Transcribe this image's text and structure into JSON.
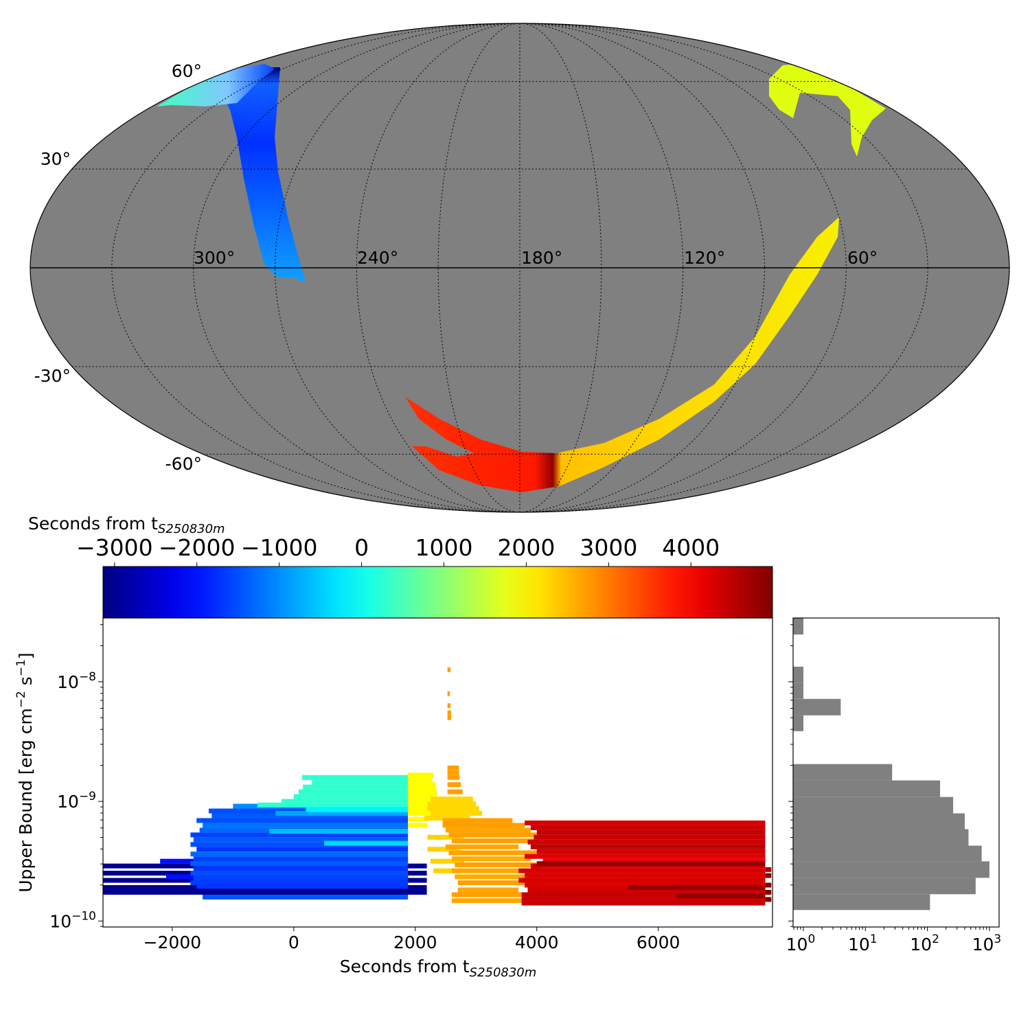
{
  "chart_data": [
    {
      "type": "map",
      "projection": "mollweide",
      "background_color": "#808080",
      "lon_labels": [
        "300°",
        "240°",
        "180°",
        "120°",
        "60°"
      ],
      "lat_labels": [
        "60°",
        "30°",
        "-30°",
        "-60°"
      ],
      "grid": true,
      "color_by": "Seconds from t_S250830m"
    },
    {
      "type": "colorbar",
      "title": "Seconds from t",
      "title_sub": "S250830m",
      "colormap": "jet",
      "range": [
        -3140,
        4990
      ],
      "ticks": [
        -3000,
        -2000,
        -1000,
        0,
        1000,
        2000,
        3000,
        4000
      ],
      "tick_labels": [
        "−3000",
        "−2000",
        "−1000",
        "0",
        "1000",
        "2000",
        "3000",
        "4000"
      ]
    },
    {
      "type": "segments",
      "xlabel": "Seconds from t",
      "xlabel_sub": "S250830m",
      "ylabel": "Upper Bound [erg cm",
      "ylabel_sup1": "−2",
      "ylabel_mid": " s",
      "ylabel_sup2": "−1",
      "ylabel_end": "]",
      "xlim": [
        -3140,
        7880
      ],
      "ylim_log10": [
        -10.05,
        -7.467
      ],
      "xticks": [
        -2000,
        0,
        2000,
        4000,
        6000
      ],
      "xtick_labels": [
        "−2000",
        "0",
        "2000",
        "4000",
        "6000"
      ],
      "yticks_log10": [
        -8,
        -9,
        -10
      ],
      "ytick_labels": [
        {
          "base": "10",
          "exp": "−8"
        },
        {
          "base": "10",
          "exp": "−9"
        },
        {
          "base": "10",
          "exp": "−10"
        }
      ],
      "segment_fields": [
        "start_s",
        "end_s",
        "log10_upper_bound",
        "color_time_s"
      ],
      "segments": [
        [
          -3140,
          2190,
          -9.54,
          -3000
        ],
        [
          -3140,
          2190,
          -9.6,
          -3000
        ],
        [
          -3140,
          2190,
          -9.66,
          -3000
        ],
        [
          -3140,
          2190,
          -9.72,
          -3000
        ],
        [
          -3140,
          2190,
          -9.76,
          -3000
        ],
        [
          -2200,
          1880,
          -9.5,
          -2000
        ],
        [
          -2100,
          1880,
          -9.63,
          -2000
        ],
        [
          -1400,
          1880,
          -9.08,
          -1500
        ],
        [
          -1350,
          1880,
          -9.12,
          -1400
        ],
        [
          -1600,
          1880,
          -9.16,
          -1500
        ],
        [
          -1500,
          1880,
          -9.2,
          -1200
        ],
        [
          -1550,
          1880,
          -9.24,
          -1300
        ],
        [
          -1700,
          1880,
          -9.28,
          -1600
        ],
        [
          -1650,
          1880,
          -9.32,
          -1400
        ],
        [
          -1700,
          1880,
          -9.36,
          -1500
        ],
        [
          -1600,
          1880,
          -9.4,
          -1700
        ],
        [
          -1700,
          1880,
          -9.44,
          -1300
        ],
        [
          -1650,
          1880,
          -9.48,
          -1600
        ],
        [
          -1700,
          1880,
          -9.52,
          -1400
        ],
        [
          -1650,
          1880,
          -9.56,
          -1700
        ],
        [
          -1700,
          1880,
          -9.6,
          -1500
        ],
        [
          -1650,
          1880,
          -9.64,
          -1600
        ],
        [
          -1700,
          1880,
          -9.68,
          -1650
        ],
        [
          -1600,
          1880,
          -9.71,
          -1700
        ],
        [
          -1500,
          1880,
          -9.8,
          -1450
        ],
        [
          -1000,
          1880,
          -9.04,
          -1000
        ],
        [
          -300,
          1880,
          -9.1,
          -800
        ],
        [
          200,
          1880,
          -9.07,
          -200
        ],
        [
          -400,
          1880,
          -9.25,
          -600
        ],
        [
          500,
          1880,
          -9.35,
          -400
        ],
        [
          135,
          1880,
          -8.8,
          300
        ],
        [
          300,
          1880,
          -8.84,
          300
        ],
        [
          150,
          1880,
          -8.88,
          300
        ],
        [
          80,
          1880,
          -8.92,
          300
        ],
        [
          0,
          1880,
          -8.96,
          300
        ],
        [
          -200,
          1880,
          -9.0,
          300
        ],
        [
          -600,
          1880,
          -9.03,
          250
        ],
        [
          1880,
          2300,
          -8.78,
          1950
        ],
        [
          1880,
          2280,
          -8.82,
          1950
        ],
        [
          1880,
          2330,
          -8.86,
          1950
        ],
        [
          1880,
          2350,
          -8.9,
          1950
        ],
        [
          1880,
          2360,
          -8.94,
          1950
        ],
        [
          1880,
          2300,
          -8.98,
          1950
        ],
        [
          1880,
          2250,
          -9.02,
          1950
        ],
        [
          1880,
          2240,
          -9.06,
          1950
        ],
        [
          1880,
          2300,
          -9.1,
          1950
        ],
        [
          1880,
          2220,
          -9.15,
          1950
        ],
        [
          1880,
          2200,
          -9.2,
          1950
        ],
        [
          2250,
          2950,
          -8.98,
          2250
        ],
        [
          2200,
          3000,
          -9.02,
          2250
        ],
        [
          2200,
          3050,
          -9.06,
          2250
        ],
        [
          2250,
          3100,
          -9.1,
          2250
        ],
        [
          2150,
          2900,
          -9.14,
          2250
        ],
        [
          2200,
          2800,
          -9.3,
          2300
        ],
        [
          2200,
          2750,
          -9.4,
          2300
        ],
        [
          2250,
          2800,
          -9.5,
          2300
        ],
        [
          2300,
          2900,
          -9.58,
          2300
        ],
        [
          2530,
          2580,
          -7.9,
          2700
        ],
        [
          2530,
          2570,
          -8.1,
          2700
        ],
        [
          2530,
          2580,
          -8.2,
          2700
        ],
        [
          2530,
          2590,
          -8.26,
          2700
        ],
        [
          2530,
          2590,
          -8.3,
          2700
        ],
        [
          2530,
          2720,
          -8.72,
          2700
        ],
        [
          2530,
          2720,
          -8.76,
          2700
        ],
        [
          2530,
          2730,
          -8.8,
          2700
        ],
        [
          2530,
          2750,
          -8.86,
          2700
        ],
        [
          2530,
          2780,
          -8.92,
          2700
        ],
        [
          2450,
          3600,
          -9.16,
          2700
        ],
        [
          2450,
          3800,
          -9.2,
          2700
        ],
        [
          2500,
          3900,
          -9.24,
          2650
        ],
        [
          2550,
          4000,
          -9.28,
          2700
        ],
        [
          2600,
          3950,
          -9.33,
          2700
        ],
        [
          2500,
          3700,
          -9.38,
          2650
        ],
        [
          2550,
          4050,
          -9.43,
          2700
        ],
        [
          2600,
          3900,
          -9.48,
          2600
        ],
        [
          2650,
          4000,
          -9.53,
          2700
        ],
        [
          2600,
          4050,
          -9.58,
          2650
        ],
        [
          2650,
          3800,
          -9.63,
          2600
        ],
        [
          2700,
          3900,
          -9.68,
          2700
        ],
        [
          2700,
          3700,
          -9.74,
          2650
        ],
        [
          2600,
          4500,
          -9.78,
          2700
        ],
        [
          2600,
          3800,
          -9.83,
          2650
        ],
        [
          3800,
          7760,
          -9.18,
          4300
        ],
        [
          3900,
          7760,
          -9.22,
          4400
        ],
        [
          4000,
          7760,
          -9.26,
          4450
        ],
        [
          3950,
          7760,
          -9.3,
          4400
        ],
        [
          3850,
          7760,
          -9.34,
          4350
        ],
        [
          3900,
          7760,
          -9.38,
          4500
        ],
        [
          4000,
          7760,
          -9.42,
          4400
        ],
        [
          3800,
          7760,
          -9.46,
          4200
        ],
        [
          4100,
          7760,
          -9.5,
          4100
        ],
        [
          3900,
          7760,
          -9.54,
          4350
        ],
        [
          3700,
          7760,
          -9.58,
          4300
        ],
        [
          3800,
          7760,
          -9.62,
          4250
        ],
        [
          3700,
          7760,
          -9.66,
          4300
        ],
        [
          3800,
          7760,
          -9.7,
          4250
        ],
        [
          3850,
          7760,
          -9.74,
          4350
        ],
        [
          3750,
          7760,
          -9.78,
          4400
        ],
        [
          3750,
          7760,
          -9.82,
          4400
        ],
        [
          3750,
          7760,
          -9.85,
          4400
        ],
        [
          4000,
          7760,
          -9.52,
          4800
        ],
        [
          5500,
          7760,
          -9.72,
          4800
        ],
        [
          6300,
          7760,
          -9.79,
          4850
        ],
        [
          7760,
          7860,
          -9.57,
          4600
        ],
        [
          7760,
          7860,
          -9.62,
          4950
        ],
        [
          7760,
          7860,
          -9.7,
          4900
        ],
        [
          7760,
          7860,
          -9.76,
          4950
        ],
        [
          7760,
          7860,
          -9.82,
          4950
        ]
      ]
    },
    {
      "type": "histogram",
      "orientation": "horizontal",
      "xscale": "log",
      "xlim_log10": [
        -0.166,
        3.156
      ],
      "xtick_labels": [
        {
          "base": "10",
          "exp": "0"
        },
        {
          "base": "10",
          "exp": "1"
        },
        {
          "base": "10",
          "exp": "2"
        },
        {
          "base": "10",
          "exp": "3"
        }
      ],
      "xticks_log10": [
        0,
        1,
        2,
        3
      ],
      "bin_fields": [
        "log10_lower_edge",
        "log10_upper_edge",
        "count"
      ],
      "bins": [
        [
          -7.605,
          -7.467,
          1
        ],
        [
          -8.011,
          -7.874,
          1
        ],
        [
          -8.143,
          -8.011,
          1
        ],
        [
          -8.281,
          -8.143,
          4
        ],
        [
          -8.413,
          -8.281,
          1
        ],
        [
          -8.825,
          -8.688,
          27
        ],
        [
          -8.963,
          -8.825,
          160
        ],
        [
          -9.1,
          -8.963,
          260
        ],
        [
          -9.232,
          -9.1,
          400
        ],
        [
          -9.37,
          -9.232,
          460
        ],
        [
          -9.501,
          -9.37,
          750
        ],
        [
          -9.639,
          -9.501,
          1000
        ],
        [
          -9.776,
          -9.639,
          600
        ],
        [
          -9.908,
          -9.776,
          110
        ]
      ],
      "color": "#808080"
    }
  ]
}
